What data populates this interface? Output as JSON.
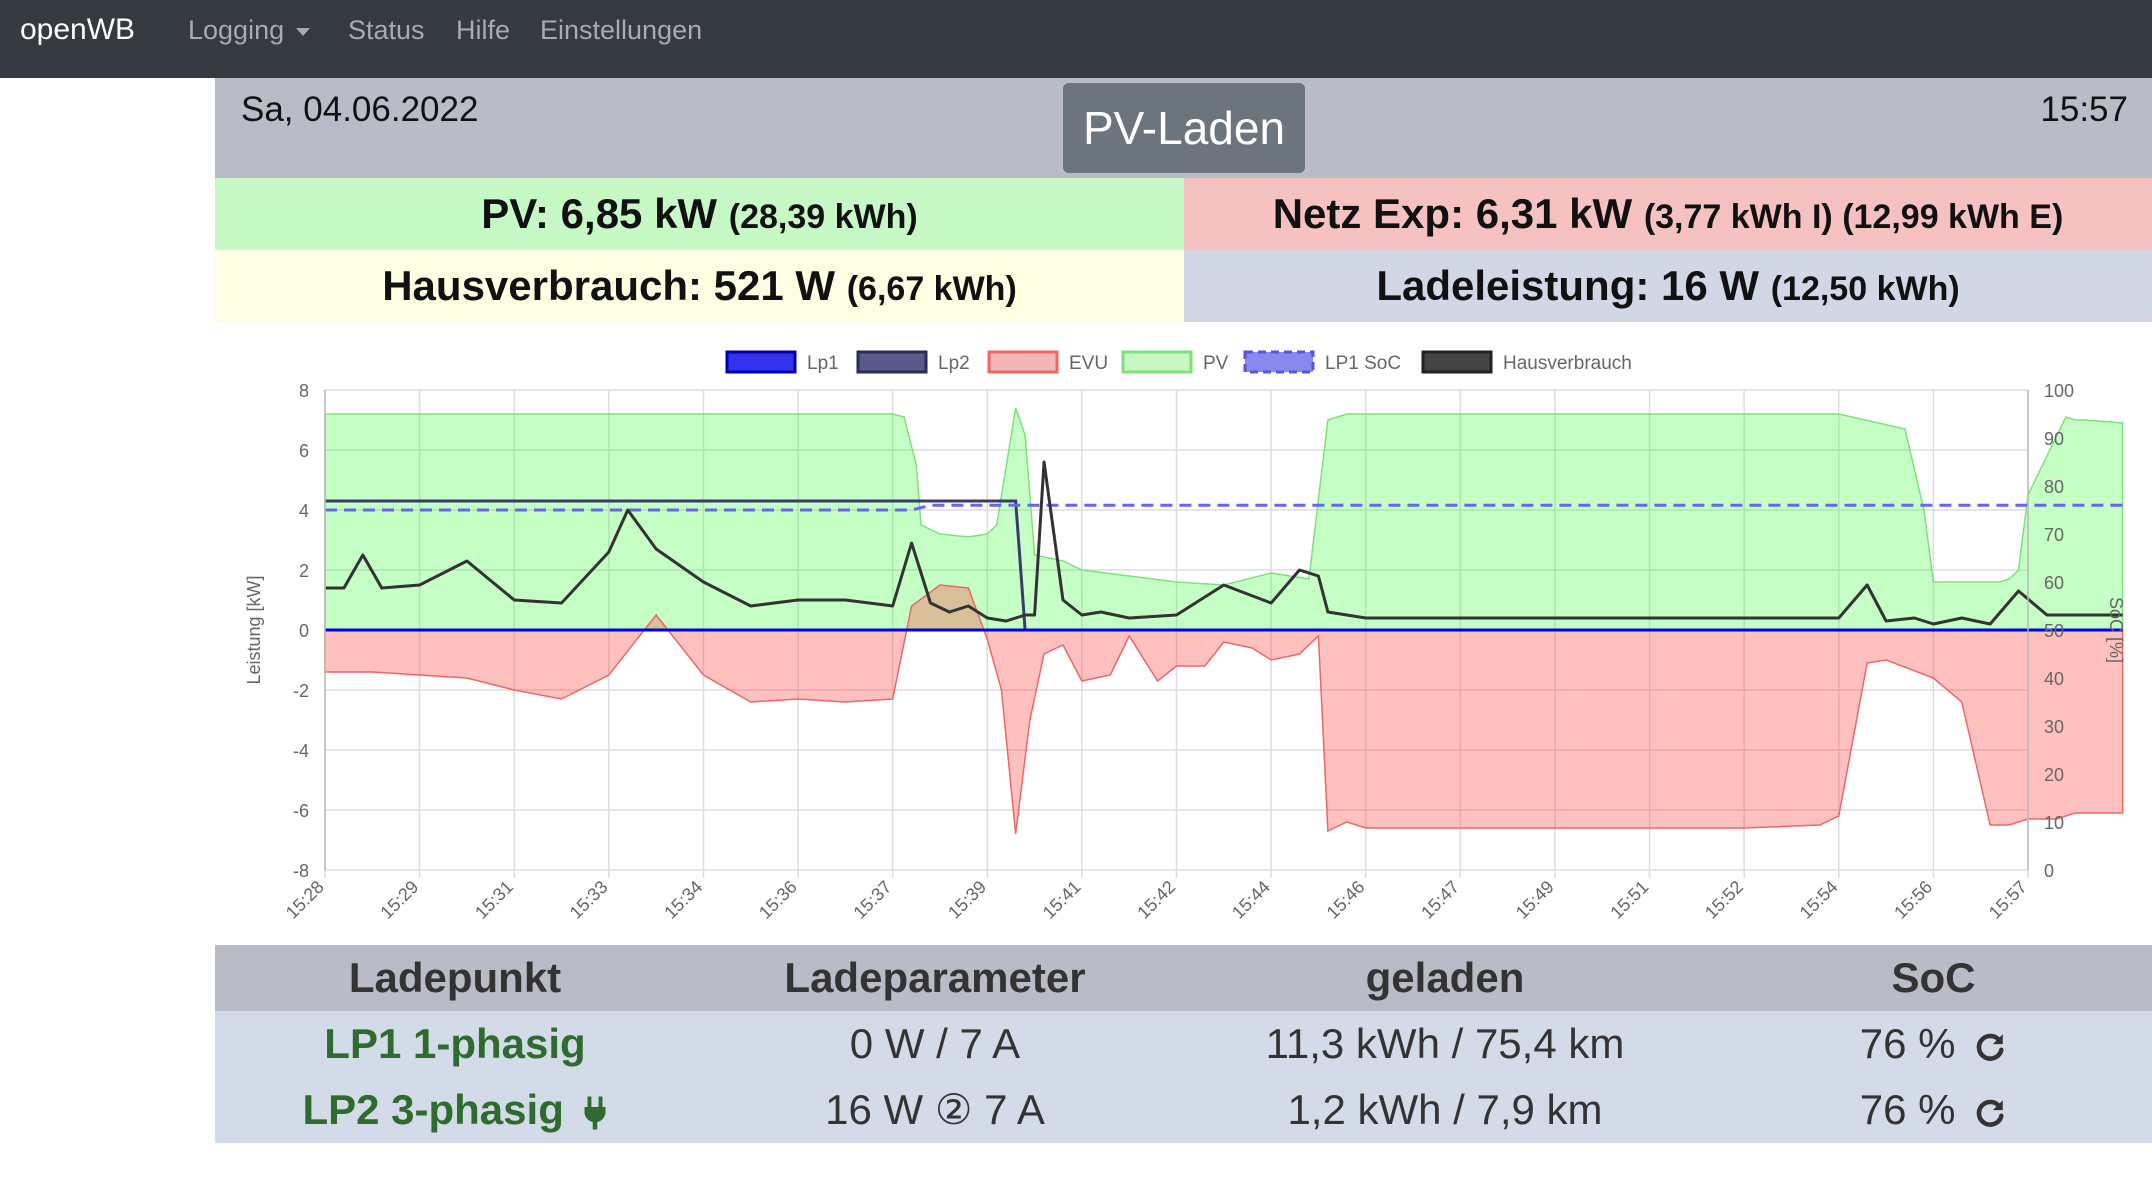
{
  "nav": {
    "brand": "openWB",
    "logging": "Logging",
    "status": "Status",
    "hilfe": "Hilfe",
    "einstellungen": "Einstellungen"
  },
  "header": {
    "date": "Sa, 04.06.2022",
    "mode": "PV-Laden",
    "time": "15:57"
  },
  "tiles": {
    "pv_label": "PV: 6,85 kW",
    "pv_sub": "(28,39 kWh)",
    "grid_label": "Netz Exp: 6,31 kW",
    "grid_sub": "(3,77 kWh I) (12,99 kWh E)",
    "house_label": "Hausverbrauch: 521 W",
    "house_sub": "(6,67 kWh)",
    "load_label": "Ladeleistung: 16 W",
    "load_sub": "(12,50 kWh)"
  },
  "chart_data": {
    "type": "line",
    "ylabel": "Leistung [kW]",
    "y2label": "SoC [%]",
    "ylim": [
      -8,
      8
    ],
    "y2lim": [
      0,
      100
    ],
    "y_ticks": [
      "8",
      "6",
      "4",
      "2",
      "0",
      "-2",
      "-4",
      "-6",
      "-8"
    ],
    "y2_ticks": [
      "100",
      "90",
      "80",
      "70",
      "60",
      "50",
      "40",
      "30",
      "20",
      "10",
      "0"
    ],
    "x_ticks": [
      "15:28",
      "15:29",
      "15:31",
      "15:33",
      "15:34",
      "15:36",
      "15:37",
      "15:39",
      "15:41",
      "15:42",
      "15:44",
      "15:46",
      "15:47",
      "15:49",
      "15:51",
      "15:52",
      "15:54",
      "15:56",
      "15:57"
    ],
    "legend_position": "top",
    "legend": [
      "Lp1",
      "Lp2",
      "EVU",
      "PV",
      "LP1 SoC",
      "Hausverbrauch"
    ],
    "series": [
      {
        "name": "PV",
        "color": "#33cc33",
        "x": [
          0,
          4,
          6,
          6.12,
          6.25,
          6.3,
          6.5,
          6.8,
          7,
          7.1,
          7.3,
          7.4,
          7.5,
          7.8,
          8,
          8.5,
          9,
          9.5,
          10,
          10.4,
          10.6,
          10.8,
          11,
          13,
          15,
          16,
          16.7,
          16.9,
          17,
          17.7,
          17.8,
          17.9,
          18,
          18.4,
          18.5,
          18.6,
          19
        ],
        "y": [
          7.2,
          7.2,
          7.2,
          7.1,
          5.5,
          3.5,
          3.2,
          3.1,
          3.2,
          3.5,
          7.4,
          6.5,
          2.5,
          2.3,
          2,
          1.8,
          1.6,
          1.5,
          1.9,
          1.7,
          7,
          7.2,
          7.2,
          7.2,
          7.2,
          7.2,
          6.7,
          4,
          1.6,
          1.6,
          1.7,
          2,
          4.5,
          7.1,
          7,
          7,
          6.9
        ]
      },
      {
        "name": "EVU",
        "color": "#ff6666",
        "x": [
          0,
          0.5,
          1,
          1.5,
          2,
          2.5,
          3,
          3.5,
          4,
          4.5,
          5,
          5.5,
          6,
          6.2,
          6.5,
          6.8,
          7,
          7.15,
          7.3,
          7.45,
          7.6,
          7.8,
          8,
          8.3,
          8.5,
          8.8,
          9,
          9.3,
          9.5,
          9.8,
          10,
          10.3,
          10.5,
          10.6,
          10.8,
          11,
          12,
          13,
          14,
          15,
          15.8,
          16,
          16.3,
          16.5,
          17,
          17.3,
          17.6,
          17.8,
          18,
          18.3,
          18.5,
          19
        ],
        "y": [
          -1.4,
          -1.4,
          -1.5,
          -1.6,
          -2,
          -2.3,
          -1.5,
          0.5,
          -1.5,
          -2.4,
          -2.3,
          -2.4,
          -2.3,
          0.8,
          1.5,
          1.4,
          -0.3,
          -2,
          -6.8,
          -3,
          -0.8,
          -0.5,
          -1.7,
          -1.5,
          -0.2,
          -1.7,
          -1.2,
          -1.2,
          -0.4,
          -0.6,
          -1,
          -0.8,
          -0.2,
          -6.7,
          -6.4,
          -6.6,
          -6.6,
          -6.6,
          -6.6,
          -6.6,
          -6.5,
          -6.2,
          -1.1,
          -1,
          -1.6,
          -2.4,
          -6.5,
          -6.5,
          -6.3,
          -6.3,
          -6.1,
          -6.1
        ]
      },
      {
        "name": "Hausverbrauch",
        "color": "#333333",
        "x": [
          0,
          0.2,
          0.4,
          0.6,
          1,
          1.5,
          2,
          2.5,
          3,
          3.2,
          3.5,
          4,
          4.5,
          5,
          5.5,
          6,
          6.2,
          6.4,
          6.6,
          6.8,
          7,
          7.2,
          7.4,
          7.5,
          7.6,
          7.8,
          8,
          8.2,
          8.5,
          9,
          9.5,
          10,
          10.3,
          10.5,
          10.6,
          10.8,
          11,
          12,
          13,
          14,
          15,
          16,
          16.3,
          16.5,
          16.8,
          17,
          17.3,
          17.6,
          17.9,
          18.2,
          18.5,
          19
        ],
        "y": [
          1.4,
          1.4,
          2.5,
          1.4,
          1.5,
          2.3,
          1,
          0.9,
          2.6,
          4,
          2.7,
          1.6,
          0.8,
          1,
          1,
          0.8,
          2.9,
          0.9,
          0.6,
          0.8,
          0.4,
          0.3,
          0.5,
          0.5,
          5.6,
          1,
          0.5,
          0.6,
          0.4,
          0.5,
          1.5,
          0.9,
          2,
          1.8,
          0.6,
          0.5,
          0.4,
          0.4,
          0.4,
          0.4,
          0.4,
          0.4,
          1.5,
          0.3,
          0.4,
          0.2,
          0.4,
          0.2,
          1.3,
          0.5,
          0.5,
          0.5
        ]
      },
      {
        "name": "Lp1",
        "color": "#0000ee",
        "x": [
          0,
          19
        ],
        "y": [
          0,
          0
        ]
      },
      {
        "name": "Lp2",
        "color": "#3b3b6b",
        "x": [
          0,
          7.3,
          7.4,
          19
        ],
        "y": [
          4.3,
          4.3,
          0,
          0
        ]
      },
      {
        "name": "LP1 SoC",
        "color": "#6666ee",
        "axis": "y2",
        "x": [
          0,
          6.2,
          6.4,
          19
        ],
        "y": [
          75,
          75,
          76,
          76
        ]
      }
    ]
  },
  "table": {
    "headers": [
      "Ladepunkt",
      "Ladeparameter",
      "geladen",
      "SoC"
    ],
    "rows": [
      {
        "name": "LP1 1-phasig",
        "params": "0 W / 7 A",
        "charged": "11,3 kWh / 75,4 km",
        "soc": "76 %"
      },
      {
        "name": "LP2 3-phasig",
        "params": "16 W ② 7 A",
        "charged": "1,2 kWh / 7,9 km",
        "soc": "76 %"
      }
    ]
  }
}
